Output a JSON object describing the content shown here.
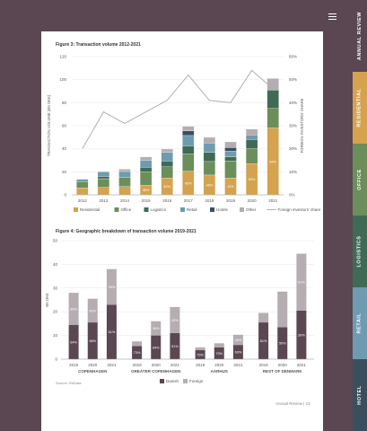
{
  "tabs": [
    "ANNUAL REVIEW",
    "RESIDENTIAL",
    "OFFICE",
    "LOGISTICS",
    "RETAIL",
    "HOTEL"
  ],
  "tab_colors": [
    "#5a4752",
    "#d5a24e",
    "#6b8e5a",
    "#3f6b56",
    "#6f9bb0",
    "#3a4f5e"
  ],
  "figure3_title": "Figure 3: Transaction volume 2012-2021",
  "figure4_title": "Figure 4: Geographic breakdown of transaction volume 2019-2021",
  "source": "Source: ReData",
  "footer": "Annual Review  |  15",
  "chart_data": [
    {
      "type": "bar",
      "title": "Figure 3: Transaction volume 2012-2021",
      "ylabel": "TRANSACTION VOLUME (BN DKK)",
      "y2label": "FOREIGN INVESTORS' SHARE",
      "ylim": [
        0,
        120
      ],
      "yticks": [
        0,
        20,
        40,
        60,
        80,
        100,
        120
      ],
      "y2lim": [
        0,
        60
      ],
      "y2ticks": [
        "0%",
        "10%",
        "20%",
        "30%",
        "40%",
        "50%",
        "60%"
      ],
      "categories": [
        "2012",
        "2013",
        "2014",
        "2015",
        "2016",
        "2017",
        "2018",
        "2019",
        "2020",
        "2021"
      ],
      "series": [
        {
          "name": "Residential",
          "color": "#d5a24e",
          "values": [
            6.0,
            6.5,
            7.2,
            8.3,
            14.5,
            20.5,
            17.2,
            14.5,
            27.0,
            58.0
          ],
          "labels": [
            "",
            "",
            "",
            "38%",
            "40%",
            "45%",
            "45%",
            "43%",
            "53%",
            "64%"
          ]
        },
        {
          "name": "Office",
          "color": "#6b8e5a",
          "values": [
            5.5,
            7.5,
            7.8,
            11.7,
            9.8,
            15.0,
            11.7,
            15.0,
            13.0,
            17.0
          ],
          "labels": [
            "",
            "",
            "",
            "",
            "",
            "",
            "",
            "",
            "",
            ""
          ]
        },
        {
          "name": "Logistics",
          "color": "#3f6b56",
          "values": [
            0,
            2.0,
            0,
            4.0,
            5.0,
            7.0,
            8.0,
            3.5,
            8.0,
            16.0
          ],
          "labels": [
            "",
            "",
            "",
            "",
            "",
            "",
            "",
            "",
            "",
            ""
          ]
        },
        {
          "name": "Retail",
          "color": "#6f9bb0",
          "values": [
            2.0,
            4.0,
            5.3,
            6.0,
            7.5,
            9.0,
            8.0,
            5.0,
            4.0,
            0
          ],
          "labels": [
            "",
            "",
            "",
            "",
            "",
            "",
            "",
            "",
            "",
            ""
          ]
        },
        {
          "name": "Hotels",
          "color": "#3a4f5e",
          "values": [
            0,
            0,
            0,
            0,
            0,
            4.0,
            0,
            3.0,
            0,
            0
          ],
          "labels": [
            "",
            "",
            "",
            "",
            "",
            "",
            "",
            "",
            "",
            ""
          ]
        },
        {
          "name": "Other",
          "color": "#b5adb2",
          "values": [
            0,
            0,
            2.0,
            3.0,
            3.0,
            4.0,
            5.0,
            5.0,
            5.0,
            10.0
          ],
          "labels": [
            "",
            "",
            "",
            "",
            "",
            "",
            "",
            "",
            "",
            ""
          ]
        }
      ],
      "share_series": {
        "name": "Foreign investors' share",
        "color": "#b5adb2",
        "values": [
          20,
          36,
          31,
          36,
          41,
          52,
          41,
          40,
          54,
          46
        ]
      }
    },
    {
      "type": "bar",
      "title": "Figure 4: Geographic breakdown of transaction volume 2019-2021",
      "ylabel": "BN DKK",
      "ylim": [
        0,
        50
      ],
      "yticks": [
        0,
        10,
        20,
        30,
        40,
        50
      ],
      "groups": [
        {
          "name": "COPENHAGEN",
          "years": [
            "2019",
            "2020",
            "2021"
          ],
          "danish": [
            14.5,
            15.5,
            23.0
          ],
          "foreign": [
            13.5,
            10.0,
            15.0
          ],
          "foreign_pct": [
            "36%",
            "42%",
            "35%"
          ],
          "danish_pct": [
            "64%",
            "68%",
            "61%"
          ]
        },
        {
          "name": "GREATER COPENHAGEN",
          "years": [
            "2019",
            "2020",
            "2021"
          ],
          "danish": [
            5.5,
            10.0,
            11.0
          ],
          "foreign": [
            2.0,
            6.0,
            11.0
          ],
          "foreign_pct": [
            "",
            "36%",
            "49%"
          ],
          "danish_pct": [
            "73%",
            "64%",
            "51%"
          ]
        },
        {
          "name": "AARHUS",
          "years": [
            "2019",
            "2020",
            "2021"
          ],
          "danish": [
            3.8,
            5.0,
            6.0
          ],
          "foreign": [
            1.2,
            1.7,
            4.3
          ],
          "foreign_pct": [
            "",
            "",
            "40%"
          ],
          "danish_pct": [
            "75%",
            "73%",
            "60%"
          ]
        },
        {
          "name": "REST OF DENMARK",
          "years": [
            "2019",
            "2020",
            "2021"
          ],
          "danish": [
            15.5,
            13.5,
            20.5
          ],
          "foreign": [
            4.0,
            15.0,
            24.0
          ],
          "foreign_pct": [
            "",
            "",
            "61%"
          ],
          "danish_pct": [
            "81%",
            "50%",
            "39%"
          ]
        }
      ],
      "series": [
        {
          "name": "Danish",
          "color": "#5a4752"
        },
        {
          "name": "Foreign",
          "color": "#b5adb2"
        }
      ]
    }
  ]
}
